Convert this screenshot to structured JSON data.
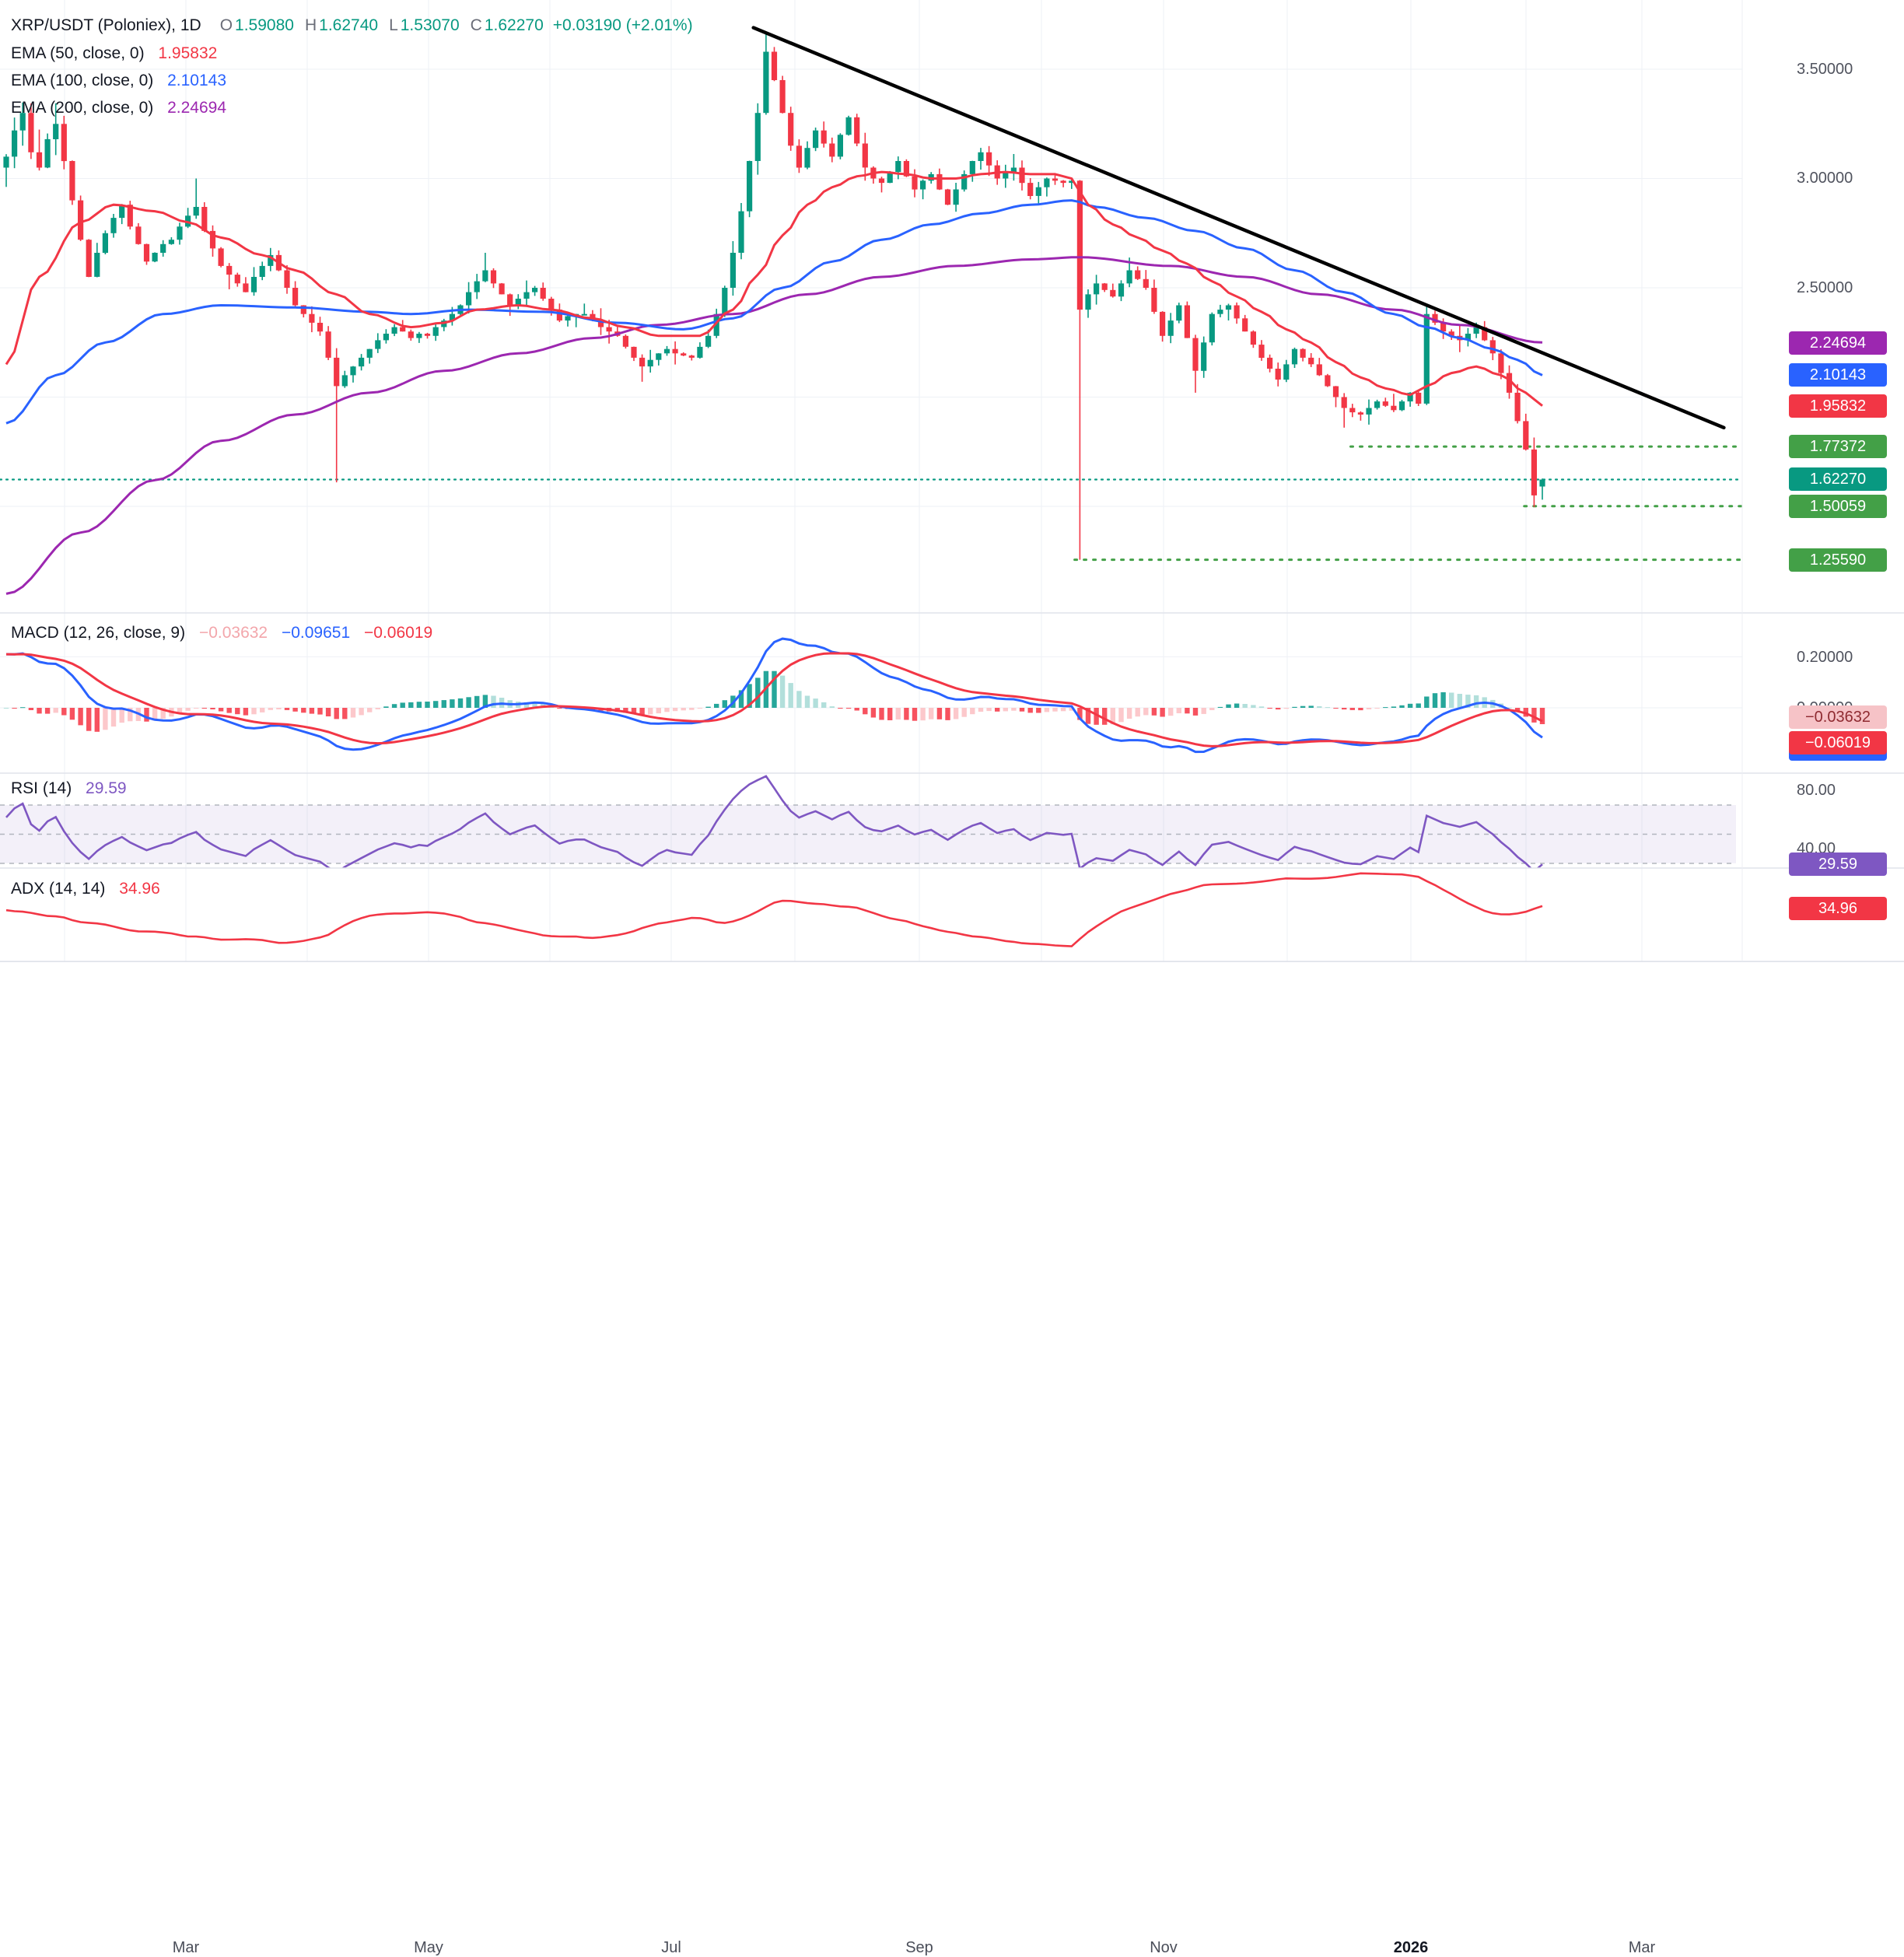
{
  "header": {
    "title": "XRP/USDT (Poloniex), 1D",
    "o_label": "O",
    "o_value": "1.59080",
    "h_label": "H",
    "h_value": "1.62740",
    "l_label": "L",
    "l_value": "1.53070",
    "c_label": "C",
    "c_value": "1.62270",
    "change": "+0.03190 (+2.01%)",
    "up_color": "#089981"
  },
  "ema_legend": [
    {
      "label": "EMA (50, close, 0)",
      "value": "1.95832",
      "color": "#f23645"
    },
    {
      "label": "EMA (100, close, 0)",
      "value": "2.10143",
      "color": "#2962ff"
    },
    {
      "label": "EMA (200, close, 0)",
      "value": "2.24694",
      "color": "#9c27b0"
    }
  ],
  "price_scale": {
    "ticks": [
      {
        "text": "3.50000",
        "value": 3.5
      },
      {
        "text": "3.00000",
        "value": 3.0
      },
      {
        "text": "2.50000",
        "value": 2.5
      }
    ],
    "badges": [
      {
        "text": "2.24694",
        "value": 2.24694,
        "bg": "#9c27b0",
        "fg": "#ffffff"
      },
      {
        "text": "2.10143",
        "value": 2.10143,
        "bg": "#2962ff",
        "fg": "#ffffff"
      },
      {
        "text": "1.95832",
        "value": 1.95832,
        "bg": "#f23645",
        "fg": "#ffffff"
      },
      {
        "text": "1.77372",
        "value": 1.77372,
        "bg": "#43a047",
        "fg": "#ffffff"
      },
      {
        "text": "1.62270",
        "value": 1.6227,
        "bg": "#089981",
        "fg": "#ffffff"
      },
      {
        "text": "1.50059",
        "value": 1.50059,
        "bg": "#43a047",
        "fg": "#ffffff"
      },
      {
        "text": "1.25590",
        "value": 1.2559,
        "bg": "#43a047",
        "fg": "#ffffff"
      }
    ]
  },
  "macd_panel": {
    "legend": "MACD (12, 26, close, 9)",
    "hist_value": "−0.03632",
    "hist_color": "#f3a6ab",
    "macd_value": "−0.09651",
    "macd_color": "#2962ff",
    "signal_value": "−0.06019",
    "signal_color": "#f23645",
    "tick_top": "0.20000",
    "tick_zero": "0.00000",
    "badges": {
      "hist": {
        "text": "−0.03632",
        "bg": "#f6c3c7",
        "fg": "#8f2b31"
      },
      "macd": {
        "text": "−0.09651",
        "bg": "#2962ff",
        "fg": "#ffffff"
      },
      "signal": {
        "text": "−0.06019",
        "bg": "#f23645",
        "fg": "#ffffff"
      }
    }
  },
  "rsi_panel": {
    "legend": "RSI (14)",
    "value": "29.59",
    "value_color": "#7e57c2",
    "tick_top": "80.00",
    "tick_bottom": "40.00",
    "badge": {
      "text": "29.59",
      "bg": "#7e57c2",
      "fg": "#ffffff"
    }
  },
  "adx_panel": {
    "legend": "ADX (14, 14)",
    "value": "34.96",
    "value_color": "#f23645",
    "badge": {
      "text": "34.96",
      "bg": "#f23645",
      "fg": "#ffffff"
    }
  },
  "time_axis": {
    "labels": [
      {
        "text": "Mar"
      },
      {
        "text": "May"
      },
      {
        "text": "Jul"
      },
      {
        "text": "Sep"
      },
      {
        "text": "Nov"
      },
      {
        "text": "2026"
      },
      {
        "text": "Mar"
      }
    ]
  },
  "chart_data": {
    "type": "candlestick",
    "symbol": "XRP/USDT",
    "exchange": "Poloniex",
    "interval": "1D",
    "x_labels": [
      "Mar",
      "May",
      "Jul",
      "Sep",
      "Nov",
      "2026",
      "Mar"
    ],
    "price_ticks": [
      3.5,
      3.0,
      2.5
    ],
    "macd_axis_ticks": [
      0.2,
      0.0
    ],
    "last_candle": {
      "open": 1.5908,
      "high": 1.6274,
      "low": 1.5307,
      "close": 1.6227
    },
    "change": {
      "abs": 0.0319,
      "pct": 2.01
    },
    "first_open": 3.05,
    "closes": [
      3.1,
      3.22,
      3.3,
      3.12,
      3.05,
      3.18,
      3.25,
      3.08,
      2.9,
      2.72,
      2.55,
      2.66,
      2.75,
      2.82,
      2.88,
      2.78,
      2.7,
      2.62,
      2.66,
      2.7,
      2.72,
      2.78,
      2.83,
      2.87,
      2.76,
      2.68,
      2.6,
      2.56,
      2.52,
      2.48,
      2.55,
      2.6,
      2.65,
      2.58,
      2.5,
      2.42,
      2.38,
      2.34,
      2.3,
      2.18,
      2.05,
      2.1,
      2.14,
      2.18,
      2.22,
      2.26,
      2.29,
      2.32,
      2.3,
      2.27,
      2.29,
      2.28,
      2.32,
      2.35,
      2.38,
      2.42,
      2.48,
      2.53,
      2.58,
      2.52,
      2.47,
      2.42,
      2.45,
      2.48,
      2.5,
      2.45,
      2.4,
      2.35,
      2.37,
      2.38,
      2.38,
      2.35,
      2.32,
      2.3,
      2.28,
      2.23,
      2.18,
      2.14,
      2.17,
      2.2,
      2.22,
      2.2,
      2.19,
      2.18,
      2.23,
      2.28,
      2.38,
      2.5,
      2.66,
      2.85,
      3.08,
      3.3,
      3.58,
      3.45,
      3.3,
      3.15,
      3.05,
      3.14,
      3.22,
      3.16,
      3.1,
      3.2,
      3.28,
      3.16,
      3.05,
      3.0,
      2.98,
      3.03,
      3.08,
      3.01,
      2.95,
      2.99,
      3.02,
      2.95,
      2.88,
      2.95,
      3.02,
      3.08,
      3.12,
      3.06,
      3.0,
      3.03,
      3.05,
      2.98,
      2.92,
      2.96,
      3.0,
      2.99,
      2.98,
      2.99,
      2.4,
      2.47,
      2.52,
      2.49,
      2.46,
      2.52,
      2.58,
      2.54,
      2.5,
      2.39,
      2.28,
      2.35,
      2.42,
      2.27,
      2.12,
      2.25,
      2.38,
      2.4,
      2.42,
      2.36,
      2.3,
      2.24,
      2.18,
      2.13,
      2.08,
      2.15,
      2.22,
      2.18,
      2.15,
      2.1,
      2.05,
      2.0,
      1.95,
      1.93,
      1.92,
      1.95,
      1.98,
      1.96,
      1.94,
      1.98,
      2.02,
      1.97,
      2.38,
      2.34,
      2.3,
      2.28,
      2.26,
      2.29,
      2.32,
      2.26,
      2.2,
      2.11,
      2.02,
      1.89,
      1.76,
      1.55,
      1.6227
    ],
    "candle_overrides": {
      "23": {
        "high": 3.0
      },
      "40": {
        "low": 1.61
      },
      "58": {
        "high": 2.66
      },
      "77": {
        "low": 2.07
      },
      "92": {
        "high": 3.66
      },
      "130": {
        "open": 2.99,
        "low": 1.2559
      },
      "144": {
        "low": 2.02
      },
      "162": {
        "low": 1.86
      },
      "172": {
        "high": 2.42
      },
      "185": {
        "low": 1.497
      },
      "186": {
        "open": 1.5908,
        "high": 1.6274,
        "low": 1.5307,
        "close": 1.6227
      }
    },
    "overlays": {
      "ema50": {
        "color": "#f23645",
        "last": 1.95832,
        "anchors": [
          [
            0,
            2.15
          ],
          [
            4,
            2.55
          ],
          [
            9,
            2.8
          ],
          [
            13,
            2.88
          ],
          [
            18,
            2.85
          ],
          [
            22,
            2.8
          ],
          [
            26,
            2.73
          ],
          [
            31,
            2.65
          ],
          [
            35,
            2.58
          ],
          [
            40,
            2.47
          ],
          [
            44,
            2.38
          ],
          [
            49,
            2.32
          ],
          [
            53,
            2.34
          ],
          [
            57,
            2.4
          ],
          [
            62,
            2.42
          ],
          [
            66,
            2.4
          ],
          [
            71,
            2.36
          ],
          [
            75,
            2.32
          ],
          [
            79,
            2.28
          ],
          [
            84,
            2.28
          ],
          [
            88,
            2.4
          ],
          [
            91,
            2.56
          ],
          [
            94,
            2.74
          ],
          [
            97,
            2.88
          ],
          [
            100,
            2.96
          ],
          [
            103,
            3.01
          ],
          [
            106,
            3.03
          ],
          [
            109,
            3.02
          ],
          [
            112,
            3.0
          ],
          [
            115,
            3.0
          ],
          [
            118,
            3.02
          ],
          [
            121,
            3.03
          ],
          [
            124,
            3.02
          ],
          [
            127,
            3.02
          ],
          [
            129,
            3.0
          ],
          [
            131,
            2.88
          ],
          [
            134,
            2.79
          ],
          [
            137,
            2.73
          ],
          [
            140,
            2.67
          ],
          [
            143,
            2.61
          ],
          [
            146,
            2.53
          ],
          [
            149,
            2.46
          ],
          [
            152,
            2.39
          ],
          [
            155,
            2.31
          ],
          [
            158,
            2.25
          ],
          [
            161,
            2.16
          ],
          [
            164,
            2.09
          ],
          [
            167,
            2.04
          ],
          [
            170,
            2.01
          ],
          [
            172,
            2.05
          ],
          [
            175,
            2.11
          ],
          [
            178,
            2.14
          ],
          [
            181,
            2.1
          ],
          [
            184,
            2.02
          ],
          [
            186,
            1.96
          ]
        ]
      },
      "ema100": {
        "color": "#2962ff",
        "last": 2.10143,
        "anchors": [
          [
            0,
            1.88
          ],
          [
            6,
            2.1
          ],
          [
            12,
            2.25
          ],
          [
            19,
            2.38
          ],
          [
            26,
            2.42
          ],
          [
            35,
            2.41
          ],
          [
            44,
            2.39
          ],
          [
            49,
            2.38
          ],
          [
            56,
            2.4
          ],
          [
            65,
            2.39
          ],
          [
            74,
            2.34
          ],
          [
            82,
            2.31
          ],
          [
            88,
            2.36
          ],
          [
            94,
            2.5
          ],
          [
            100,
            2.62
          ],
          [
            106,
            2.72
          ],
          [
            112,
            2.79
          ],
          [
            118,
            2.84
          ],
          [
            124,
            2.88
          ],
          [
            129,
            2.9
          ],
          [
            132,
            2.87
          ],
          [
            138,
            2.82
          ],
          [
            144,
            2.76
          ],
          [
            150,
            2.68
          ],
          [
            156,
            2.58
          ],
          [
            162,
            2.48
          ],
          [
            168,
            2.38
          ],
          [
            172,
            2.32
          ],
          [
            176,
            2.27
          ],
          [
            180,
            2.22
          ],
          [
            183,
            2.17
          ],
          [
            186,
            2.1
          ]
        ]
      },
      "ema200": {
        "color": "#9c27b0",
        "last": 2.24694,
        "anchors": [
          [
            0,
            1.1
          ],
          [
            9,
            1.38
          ],
          [
            18,
            1.62
          ],
          [
            26,
            1.8
          ],
          [
            35,
            1.92
          ],
          [
            44,
            2.02
          ],
          [
            53,
            2.12
          ],
          [
            62,
            2.2
          ],
          [
            71,
            2.27
          ],
          [
            79,
            2.33
          ],
          [
            88,
            2.38
          ],
          [
            97,
            2.47
          ],
          [
            106,
            2.55
          ],
          [
            115,
            2.6
          ],
          [
            124,
            2.63
          ],
          [
            130,
            2.64
          ],
          [
            141,
            2.6
          ],
          [
            150,
            2.55
          ],
          [
            159,
            2.47
          ],
          [
            168,
            2.4
          ],
          [
            176,
            2.33
          ],
          [
            186,
            2.25
          ]
        ]
      }
    },
    "trendline": {
      "x1f": 0.434,
      "price1": 3.69,
      "x2f": 0.993,
      "price2": 1.86,
      "color": "#000000"
    },
    "levels": [
      {
        "price": 1.77372,
        "start_xf": 0.778,
        "style": "dotted",
        "color": "#43a047"
      },
      {
        "price": 1.6227,
        "start_xf": 0.0,
        "style": "dotted",
        "color": "#089981"
      },
      {
        "price": 1.50059,
        "start_xf": 0.878,
        "style": "dotted",
        "color": "#43a047"
      },
      {
        "price": 1.2559,
        "start_xf": 0.619,
        "style": "dotted",
        "color": "#43a047"
      }
    ],
    "indicators": {
      "macd": {
        "fast": 12,
        "slow": 26,
        "signal_period": 9,
        "hist": -0.03632,
        "macd": -0.09651,
        "signal": -0.06019
      },
      "rsi": {
        "period": 14,
        "value": 29.59,
        "bands": [
          70,
          50,
          30
        ],
        "axis_ticks": [
          80,
          40
        ]
      },
      "adx": {
        "period": 14,
        "smoothing": 14,
        "value": 34.96
      }
    }
  }
}
